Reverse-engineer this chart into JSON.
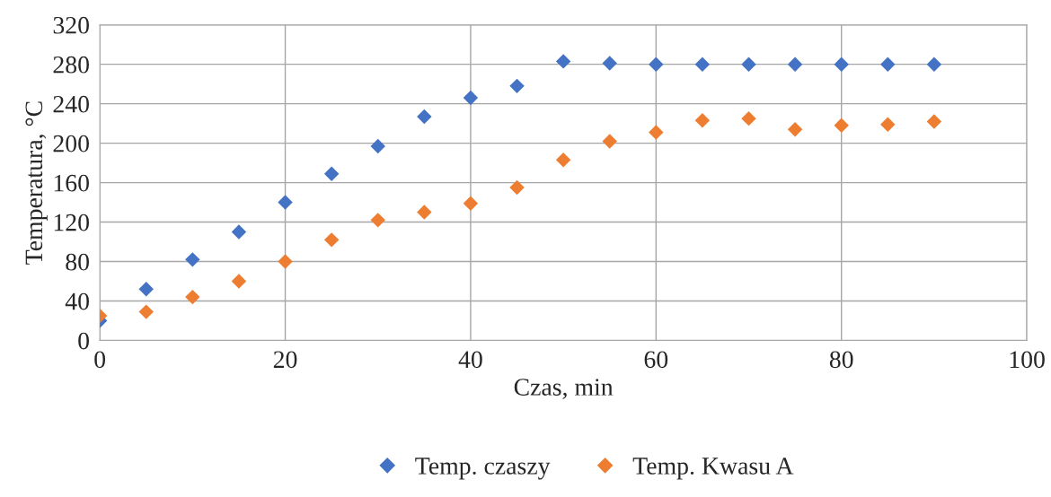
{
  "chart_data": {
    "type": "scatter",
    "xlabel": "Czas, min",
    "ylabel": "Temperatura, °C",
    "x": [
      0,
      5,
      10,
      15,
      20,
      25,
      30,
      35,
      40,
      45,
      50,
      55,
      60,
      65,
      70,
      75,
      80,
      85,
      90
    ],
    "series": [
      {
        "name": "Temp. czaszy",
        "color": "#4472c4",
        "values": [
          20,
          52,
          82,
          110,
          140,
          169,
          197,
          227,
          246,
          258,
          283,
          281,
          280,
          280,
          280,
          280,
          280,
          280,
          280
        ]
      },
      {
        "name": "Temp. Kwasu A",
        "color": "#ed7d31",
        "values": [
          25,
          29,
          44,
          60,
          80,
          102,
          122,
          130,
          139,
          155,
          183,
          202,
          211,
          223,
          225,
          214,
          218,
          219,
          222
        ]
      }
    ],
    "xlim": [
      0,
      100
    ],
    "xticks": [
      0,
      20,
      40,
      60,
      80,
      100
    ],
    "ylim": [
      0,
      320
    ],
    "yticks": [
      0,
      40,
      80,
      120,
      160,
      200,
      240,
      280,
      320
    ],
    "grid": true,
    "legend": "bottom",
    "marker": "diamond"
  }
}
